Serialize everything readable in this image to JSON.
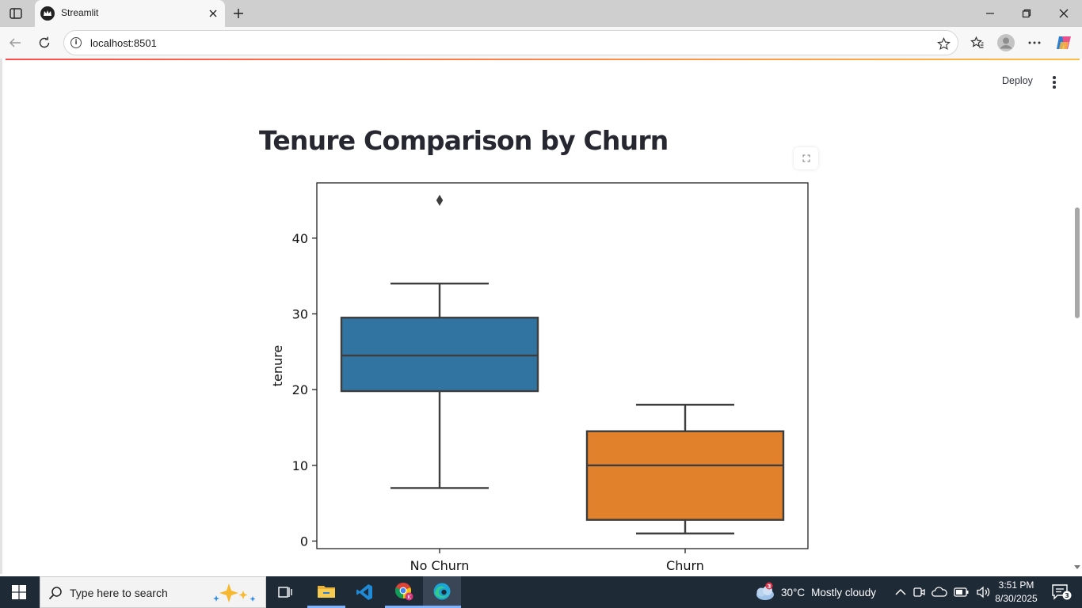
{
  "browser": {
    "tab_title": "Streamlit",
    "url": "localhost:8501"
  },
  "app": {
    "deploy_label": "Deploy",
    "title": "Tenure Comparison by Churn"
  },
  "chart_data": {
    "type": "box",
    "title": "",
    "xlabel": "",
    "ylabel": "tenure",
    "ylim": [
      -1,
      47.3
    ],
    "yticks": [
      0,
      10,
      20,
      30,
      40
    ],
    "grid": false,
    "categories": [
      "No Churn",
      "Churn"
    ],
    "boxes": [
      {
        "category": "No Churn",
        "color": "#3274a1",
        "whisker_low": 7,
        "q1": 19.8,
        "median": 24.5,
        "q3": 29.5,
        "whisker_high": 34,
        "outliers": [
          45
        ]
      },
      {
        "category": "Churn",
        "color": "#e1812c",
        "whisker_low": 1,
        "q1": 2.8,
        "median": 10,
        "q3": 14.5,
        "whisker_high": 18,
        "outliers": []
      }
    ]
  },
  "taskbar": {
    "search_placeholder": "Type here to search",
    "weather_temp": "30°C",
    "weather_desc": "Mostly cloudy",
    "weather_badge": "3",
    "time": "3:51 PM",
    "date": "8/30/2025",
    "notification_count": "3"
  }
}
